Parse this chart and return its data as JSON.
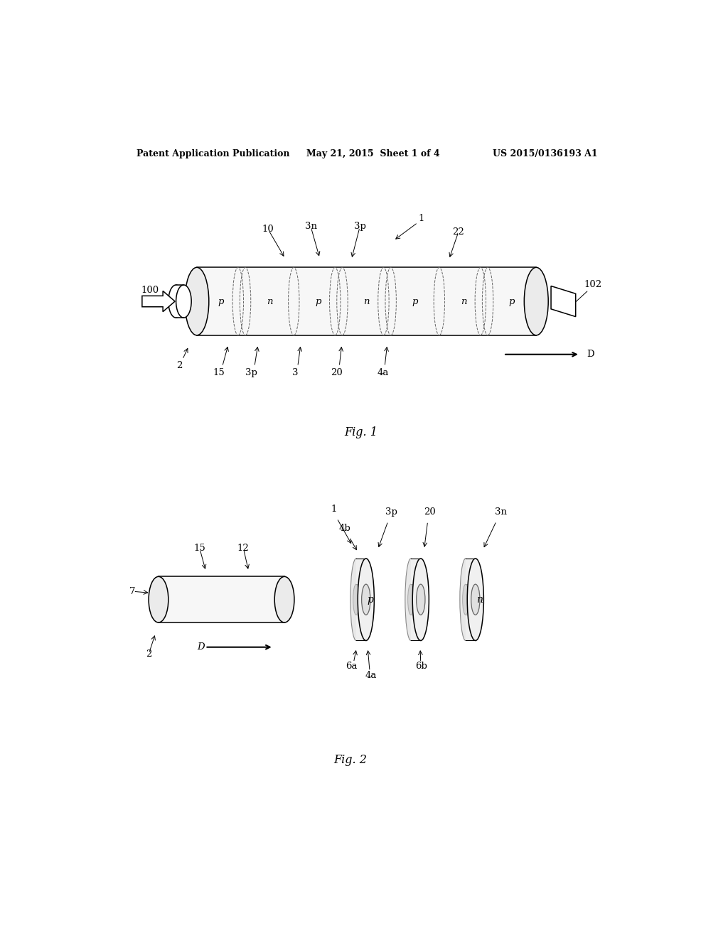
{
  "bg_color": "#ffffff",
  "header_left": "Patent Application Publication",
  "header_center": "May 21, 2015  Sheet 1 of 4",
  "header_right": "US 2015/0136193 A1",
  "fig1_caption": "Fig. 1",
  "fig2_caption": "Fig. 2"
}
